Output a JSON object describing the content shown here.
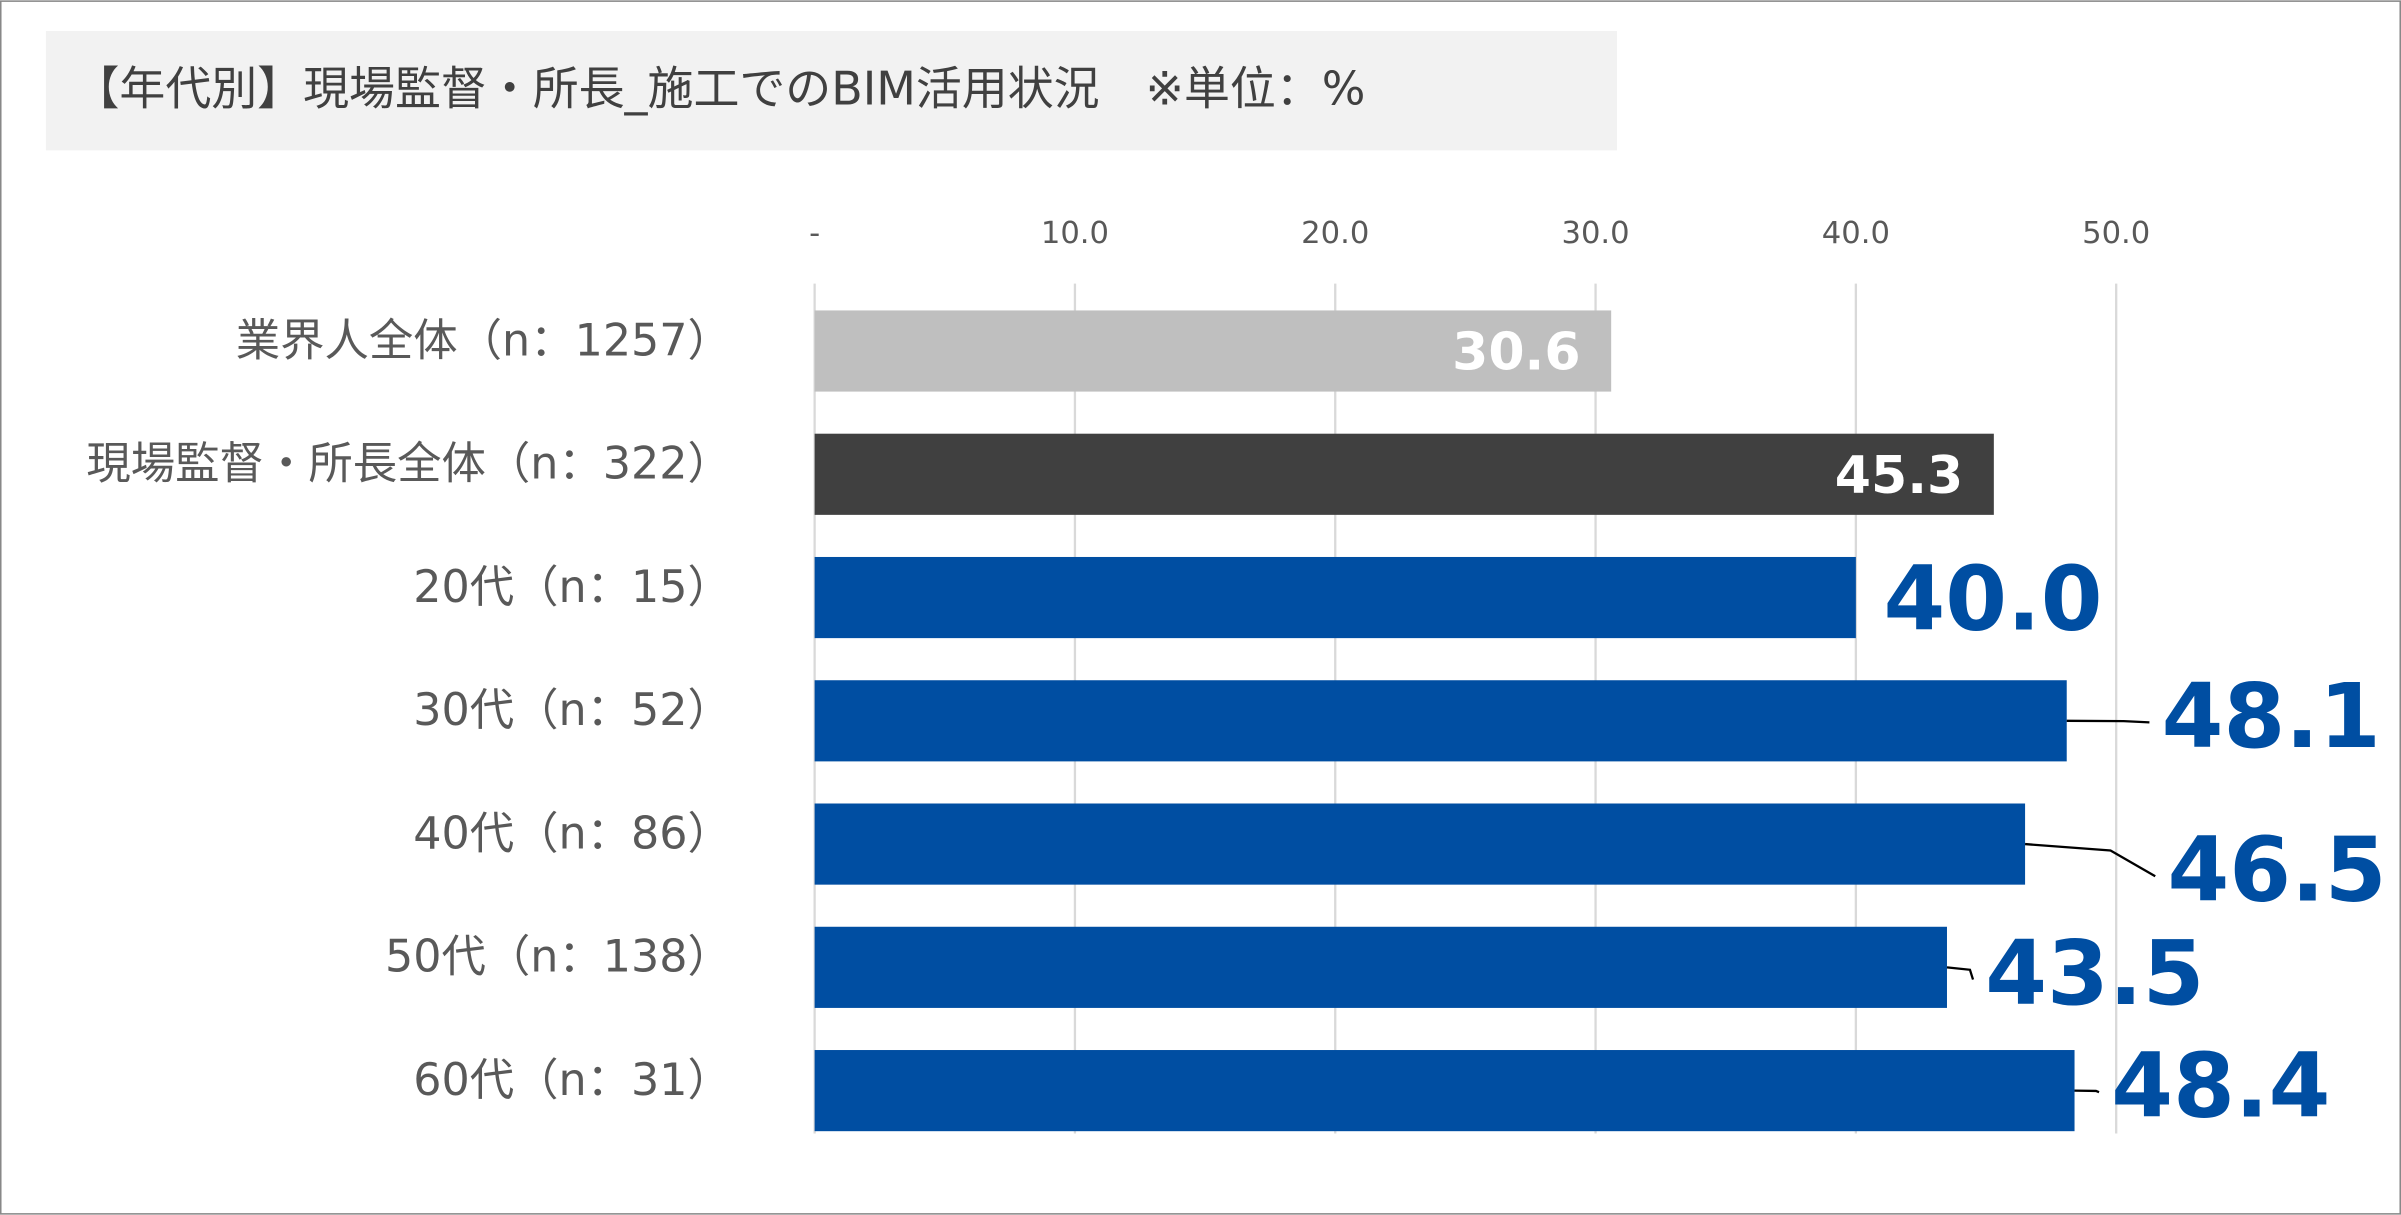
{
  "chart_data": {
    "type": "hbar",
    "title": "【年代別】現場監督・所長_施工でのBIM活用状況　※単位：%",
    "categories": [
      "業界人全体（n：1257）",
      "現場監督・所長全体（n：322）",
      "20代（n：15）",
      "30代（n：52）",
      "40代（n：86）",
      "50代（n：138）",
      "60代（n：31）"
    ],
    "values": [
      30.6,
      45.3,
      40.0,
      48.1,
      46.5,
      43.5,
      48.4
    ],
    "value_labels": [
      "30.6",
      "45.3",
      "40.0",
      "48.1",
      "46.5",
      "43.5",
      "48.4"
    ],
    "colors": [
      "#bfbfbf",
      "#404040",
      "#004ea2",
      "#004ea2",
      "#004ea2",
      "#004ea2",
      "#004ea2"
    ],
    "xlim": [
      0,
      60
    ],
    "xticks": [
      {
        "value": 0,
        "label": "-"
      },
      {
        "value": 10,
        "label": "10.0"
      },
      {
        "value": 20,
        "label": "20.0"
      },
      {
        "value": 30,
        "label": "30.0"
      },
      {
        "value": 40,
        "label": "40.0"
      },
      {
        "value": 50,
        "label": "50.0"
      }
    ],
    "grid": true
  }
}
